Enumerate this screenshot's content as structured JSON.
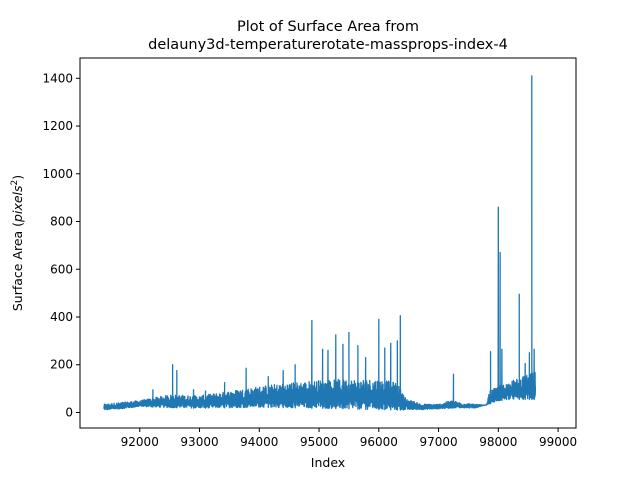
{
  "chart_data": {
    "type": "line",
    "title_line1": "Plot of Surface Area from",
    "title_line2": "delauny3d-temperaturerotate-massprops-index-4",
    "xlabel": "Index",
    "ylabel_prefix": "Surface Area (",
    "ylabel_unit": "pixels",
    "ylabel_exp": "2",
    "ylabel_suffix": ")",
    "xlim": [
      91000,
      99300
    ],
    "ylim": [
      -65,
      1485
    ],
    "xticks": [
      92000,
      93000,
      94000,
      95000,
      96000,
      97000,
      98000,
      99000
    ],
    "yticks": [
      0,
      200,
      400,
      600,
      800,
      1000,
      1200,
      1400
    ],
    "grid": false,
    "legend": "none",
    "colors": {
      "series": "#1f77b4",
      "axes": "#000000",
      "background": "#ffffff"
    },
    "series": [
      {
        "color": "#1f77b4",
        "x_range": [
          91400,
          98620
        ],
        "baseline": [
          [
            91400,
            10
          ],
          [
            91800,
            18
          ],
          [
            92000,
            25
          ],
          [
            92300,
            22
          ],
          [
            92600,
            20
          ],
          [
            93000,
            18
          ],
          [
            93500,
            20
          ],
          [
            94000,
            22
          ],
          [
            94500,
            20
          ],
          [
            95000,
            18
          ],
          [
            95500,
            15
          ],
          [
            96000,
            12
          ],
          [
            96400,
            10
          ],
          [
            96700,
            12
          ],
          [
            97000,
            15
          ],
          [
            97300,
            20
          ],
          [
            97600,
            18
          ],
          [
            97900,
            40
          ],
          [
            98000,
            50
          ],
          [
            98300,
            55
          ],
          [
            98620,
            55
          ]
        ],
        "envelope": [
          [
            91400,
            35
          ],
          [
            91800,
            45
          ],
          [
            92000,
            50
          ],
          [
            92200,
            60
          ],
          [
            92500,
            75
          ],
          [
            93000,
            70
          ],
          [
            93500,
            90
          ],
          [
            94000,
            110
          ],
          [
            94500,
            125
          ],
          [
            95000,
            135
          ],
          [
            95500,
            140
          ],
          [
            96000,
            140
          ],
          [
            96300,
            125
          ],
          [
            96450,
            60
          ],
          [
            96700,
            35
          ],
          [
            97000,
            35
          ],
          [
            97200,
            50
          ],
          [
            97400,
            40
          ],
          [
            97800,
            30
          ],
          [
            97850,
            90
          ],
          [
            98000,
            110
          ],
          [
            98300,
            140
          ],
          [
            98620,
            170
          ]
        ],
        "spikes": [
          [
            92220,
            95
          ],
          [
            92550,
            200
          ],
          [
            92620,
            175
          ],
          [
            92900,
            95
          ],
          [
            93100,
            90
          ],
          [
            93420,
            125
          ],
          [
            93780,
            185
          ],
          [
            94150,
            150
          ],
          [
            94400,
            175
          ],
          [
            94600,
            200
          ],
          [
            94880,
            385
          ],
          [
            95060,
            265
          ],
          [
            95150,
            260
          ],
          [
            95280,
            325
          ],
          [
            95400,
            285
          ],
          [
            95500,
            335
          ],
          [
            95650,
            280
          ],
          [
            95780,
            230
          ],
          [
            96000,
            390
          ],
          [
            96100,
            270
          ],
          [
            96200,
            290
          ],
          [
            96310,
            300
          ],
          [
            96360,
            405
          ],
          [
            97250,
            160
          ],
          [
            97870,
            255
          ],
          [
            98000,
            860
          ],
          [
            98030,
            670
          ],
          [
            98060,
            265
          ],
          [
            98350,
            495
          ],
          [
            98450,
            205
          ],
          [
            98520,
            250
          ],
          [
            98560,
            1410
          ],
          [
            98600,
            265
          ]
        ]
      }
    ]
  }
}
